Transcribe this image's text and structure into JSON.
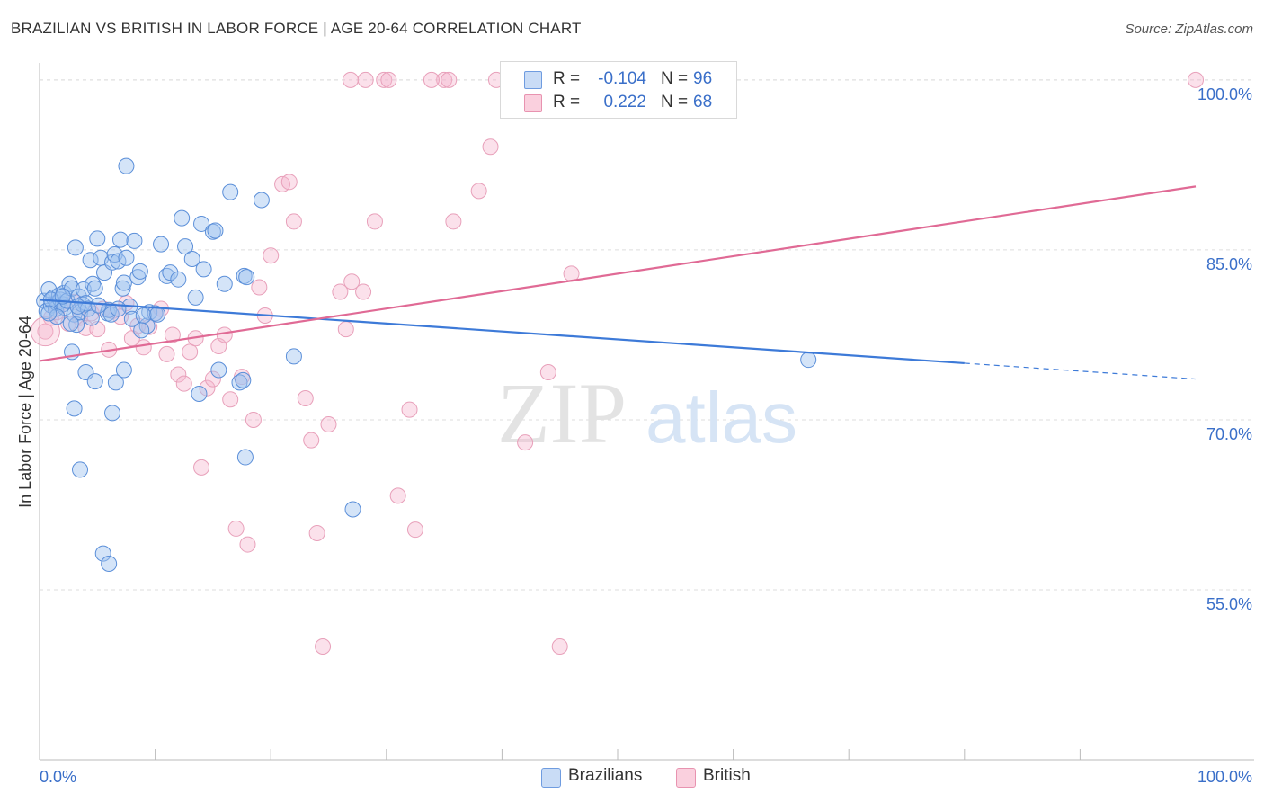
{
  "header": {
    "title": "BRAZILIAN VS BRITISH IN LABOR FORCE | AGE 20-64 CORRELATION CHART",
    "source": "Source: ZipAtlas.com"
  },
  "legend": {
    "r_label": "R =",
    "n_label": "N =",
    "series": [
      {
        "name": "Brazilians",
        "r": "-0.104",
        "n": "96",
        "fill": "#a9c8f0",
        "stroke": "#5b8fd9"
      },
      {
        "name": "British",
        "r": "0.222",
        "n": "68",
        "fill": "#f6bcd0",
        "stroke": "#e5819f"
      }
    ]
  },
  "watermark": {
    "zip": "ZIP",
    "atlas": "atlas"
  },
  "chart_data": {
    "type": "scatter",
    "title": "BRAZILIAN VS BRITISH IN LABOR FORCE | AGE 20-64 CORRELATION CHART",
    "xlabel": "",
    "ylabel": "In Labor Force | Age 20-64",
    "xlim": [
      0,
      105
    ],
    "ylim": [
      40,
      101.5
    ],
    "x_tick_labels": [
      "0.0%",
      "100.0%"
    ],
    "y_ticks": [
      {
        "value": 55,
        "label": "55.0%"
      },
      {
        "value": 70,
        "label": "70.0%"
      },
      {
        "value": 85,
        "label": "85.0%"
      },
      {
        "value": 100,
        "label": "100.0%"
      }
    ],
    "grid": true,
    "colors": {
      "Brazilians": "#3d7ad8",
      "British": "#e06a95",
      "grid": "#dddddd",
      "axis_text": "#3a6fc9"
    },
    "series": [
      {
        "name": "Brazilians",
        "trend": {
          "x0": 0,
          "y0": 80.6,
          "x1": 80,
          "y1": 75.0,
          "dashed_to_x": 100,
          "dashed_to_y": 73.6
        },
        "points": [
          [
            0.4,
            80.5
          ],
          [
            0.6,
            79.6
          ],
          [
            0.8,
            81.5
          ],
          [
            1,
            80.1
          ],
          [
            1.2,
            80.8
          ],
          [
            1.4,
            79.8
          ],
          [
            1.5,
            80.3
          ],
          [
            1.7,
            81.0
          ],
          [
            1.8,
            80.6
          ],
          [
            2,
            80.2
          ],
          [
            2.1,
            81.2
          ],
          [
            2.2,
            79.9
          ],
          [
            2.4,
            80.5
          ],
          [
            2.6,
            82.0
          ],
          [
            2.8,
            81.6
          ],
          [
            3,
            79.3
          ],
          [
            3.2,
            78.4
          ],
          [
            3.4,
            80.9
          ],
          [
            3.5,
            79.5
          ],
          [
            3.7,
            80.2
          ],
          [
            3.1,
            85.2
          ],
          [
            3.8,
            81.5
          ],
          [
            4,
            80.3
          ],
          [
            4.2,
            79.8
          ],
          [
            4.4,
            84.1
          ],
          [
            4.6,
            82.0
          ],
          [
            4.8,
            81.6
          ],
          [
            5,
            86.0
          ],
          [
            5.3,
            84.3
          ],
          [
            5.6,
            83.0
          ],
          [
            5.9,
            79.4
          ],
          [
            6,
            79.7
          ],
          [
            6.3,
            83.9
          ],
          [
            6.5,
            84.6
          ],
          [
            6.8,
            84.0
          ],
          [
            7,
            85.9
          ],
          [
            7.2,
            81.6
          ],
          [
            7.5,
            84.3
          ],
          [
            7.3,
            82.1
          ],
          [
            7.8,
            80.0
          ],
          [
            8,
            78.9
          ],
          [
            8.2,
            85.8
          ],
          [
            8.5,
            82.6
          ],
          [
            8.7,
            83.1
          ],
          [
            9.3,
            78.3
          ],
          [
            9.5,
            79.5
          ],
          [
            10,
            79.4
          ],
          [
            10.5,
            85.5
          ],
          [
            11,
            82.7
          ],
          [
            11.3,
            83.0
          ],
          [
            12,
            82.4
          ],
          [
            12.3,
            87.8
          ],
          [
            12.6,
            85.3
          ],
          [
            13.2,
            84.2
          ],
          [
            13.5,
            80.8
          ],
          [
            13.8,
            72.3
          ],
          [
            14,
            87.3
          ],
          [
            14.2,
            83.3
          ],
          [
            15,
            86.6
          ],
          [
            15.2,
            86.7
          ],
          [
            15.5,
            74.4
          ],
          [
            16,
            82.0
          ],
          [
            16.5,
            90.1
          ],
          [
            17.3,
            73.3
          ],
          [
            17.6,
            73.5
          ],
          [
            17.8,
            66.7
          ],
          [
            17.7,
            82.7
          ],
          [
            17.9,
            82.6
          ],
          [
            19.2,
            89.4
          ],
          [
            22,
            75.6
          ],
          [
            2.8,
            76.0
          ],
          [
            3,
            71.0
          ],
          [
            3.5,
            65.6
          ],
          [
            4,
            74.2
          ],
          [
            4.8,
            73.4
          ],
          [
            5.5,
            58.2
          ],
          [
            6,
            57.3
          ],
          [
            6.3,
            70.6
          ],
          [
            6.6,
            73.3
          ],
          [
            7.3,
            74.4
          ],
          [
            7.5,
            92.4
          ],
          [
            1.5,
            79.1
          ],
          [
            2.7,
            78.5
          ],
          [
            4.5,
            79.0
          ],
          [
            6.2,
            79.3
          ],
          [
            9,
            79.2
          ],
          [
            10.2,
            79.3
          ],
          [
            66.5,
            75.3
          ],
          [
            27.1,
            62.1
          ],
          [
            1,
            80.6
          ],
          [
            2,
            80.9
          ],
          [
            3.3,
            80.0
          ],
          [
            5.1,
            80.1
          ],
          [
            6.8,
            79.8
          ],
          [
            8.8,
            77.9
          ],
          [
            0.8,
            79.4
          ]
        ]
      },
      {
        "name": "British",
        "trend": {
          "x0": 0,
          "y0": 75.2,
          "x1": 100,
          "y1": 90.6
        },
        "points": [
          [
            0.5,
            77.8
          ],
          [
            1,
            79.0
          ],
          [
            1.5,
            79.5
          ],
          [
            2,
            80.2
          ],
          [
            2.5,
            78.5
          ],
          [
            3,
            80.4
          ],
          [
            3.5,
            79.0
          ],
          [
            4,
            78.1
          ],
          [
            4.5,
            79.4
          ],
          [
            5,
            78.0
          ],
          [
            5.5,
            79.8
          ],
          [
            6,
            76.2
          ],
          [
            6.3,
            79.6
          ],
          [
            7,
            79.1
          ],
          [
            7.5,
            80.3
          ],
          [
            8,
            77.2
          ],
          [
            8.5,
            78.3
          ],
          [
            9,
            76.4
          ],
          [
            9.5,
            78.2
          ],
          [
            10,
            79.4
          ],
          [
            10.5,
            79.8
          ],
          [
            11,
            75.8
          ],
          [
            11.5,
            77.5
          ],
          [
            12,
            74.0
          ],
          [
            12.5,
            73.2
          ],
          [
            13,
            76.0
          ],
          [
            13.5,
            77.2
          ],
          [
            14,
            65.8
          ],
          [
            14.5,
            72.8
          ],
          [
            15,
            73.6
          ],
          [
            15.5,
            76.5
          ],
          [
            16,
            77.5
          ],
          [
            16.5,
            71.8
          ],
          [
            17,
            60.4
          ],
          [
            17.5,
            73.8
          ],
          [
            18,
            59.0
          ],
          [
            18.5,
            70.0
          ],
          [
            19,
            81.7
          ],
          [
            19.5,
            79.2
          ],
          [
            20,
            84.5
          ],
          [
            21,
            90.8
          ],
          [
            21.6,
            91.0
          ],
          [
            22,
            87.5
          ],
          [
            23,
            71.9
          ],
          [
            23.5,
            68.2
          ],
          [
            24,
            60.0
          ],
          [
            24.5,
            50.0
          ],
          [
            25,
            69.6
          ],
          [
            26,
            81.3
          ],
          [
            26.5,
            78.0
          ],
          [
            27,
            82.2
          ],
          [
            28,
            81.3
          ],
          [
            29,
            87.5
          ],
          [
            29.8,
            100
          ],
          [
            30.2,
            100
          ],
          [
            31,
            63.3
          ],
          [
            32,
            70.9
          ],
          [
            32.5,
            60.3
          ],
          [
            35,
            100
          ],
          [
            35.4,
            100
          ],
          [
            35.8,
            87.5
          ],
          [
            38,
            90.2
          ],
          [
            39,
            94.1
          ],
          [
            39.5,
            100
          ],
          [
            42,
            68.0
          ],
          [
            44,
            74.2
          ],
          [
            45,
            50.0
          ],
          [
            46,
            82.9
          ]
        ]
      }
    ],
    "extra_points": {
      "British_100": [
        [
          26.9,
          100
        ],
        [
          28.2,
          100
        ],
        [
          33.9,
          100
        ],
        [
          100,
          100
        ]
      ]
    }
  }
}
